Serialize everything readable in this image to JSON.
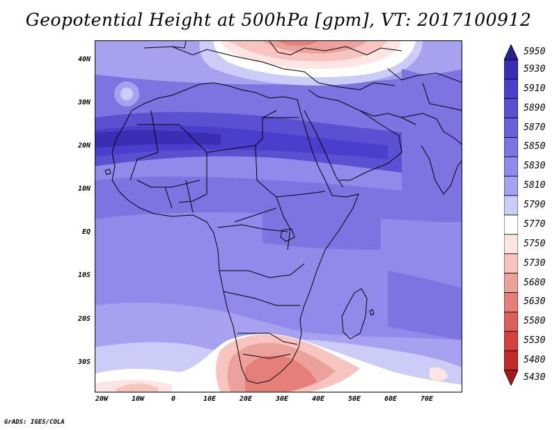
{
  "title": "Geopotential Height at 500hPa [gpm], VT: 2017100912",
  "credit": "GrADS: IGES/COLA",
  "y_axis_labels": [
    "40N",
    "30N",
    "20N",
    "10N",
    "EQ",
    "10S",
    "20S",
    "30S"
  ],
  "x_axis_labels": [
    "20W",
    "10W",
    "0",
    "10E",
    "20E",
    "30E",
    "40E",
    "50E",
    "60E",
    "70E"
  ],
  "colorbar": {
    "labels": [
      "5950",
      "5930",
      "5910",
      "5890",
      "5870",
      "5850",
      "5830",
      "5810",
      "5790",
      "5770",
      "5750",
      "5730",
      "5680",
      "5630",
      "5580",
      "5530",
      "5480",
      "5430"
    ],
    "colors": [
      "#28208c",
      "#3a2fb4",
      "#4a3fcc",
      "#5a50d2",
      "#6b62da",
      "#7c74e0",
      "#908aea",
      "#a6a2ef",
      "#ccccf8",
      "#ffffff",
      "#fde5e3",
      "#f7c4c0",
      "#eda19c",
      "#e48079",
      "#dc605a",
      "#d2423e",
      "#c02a2a",
      "#a81818"
    ]
  }
}
